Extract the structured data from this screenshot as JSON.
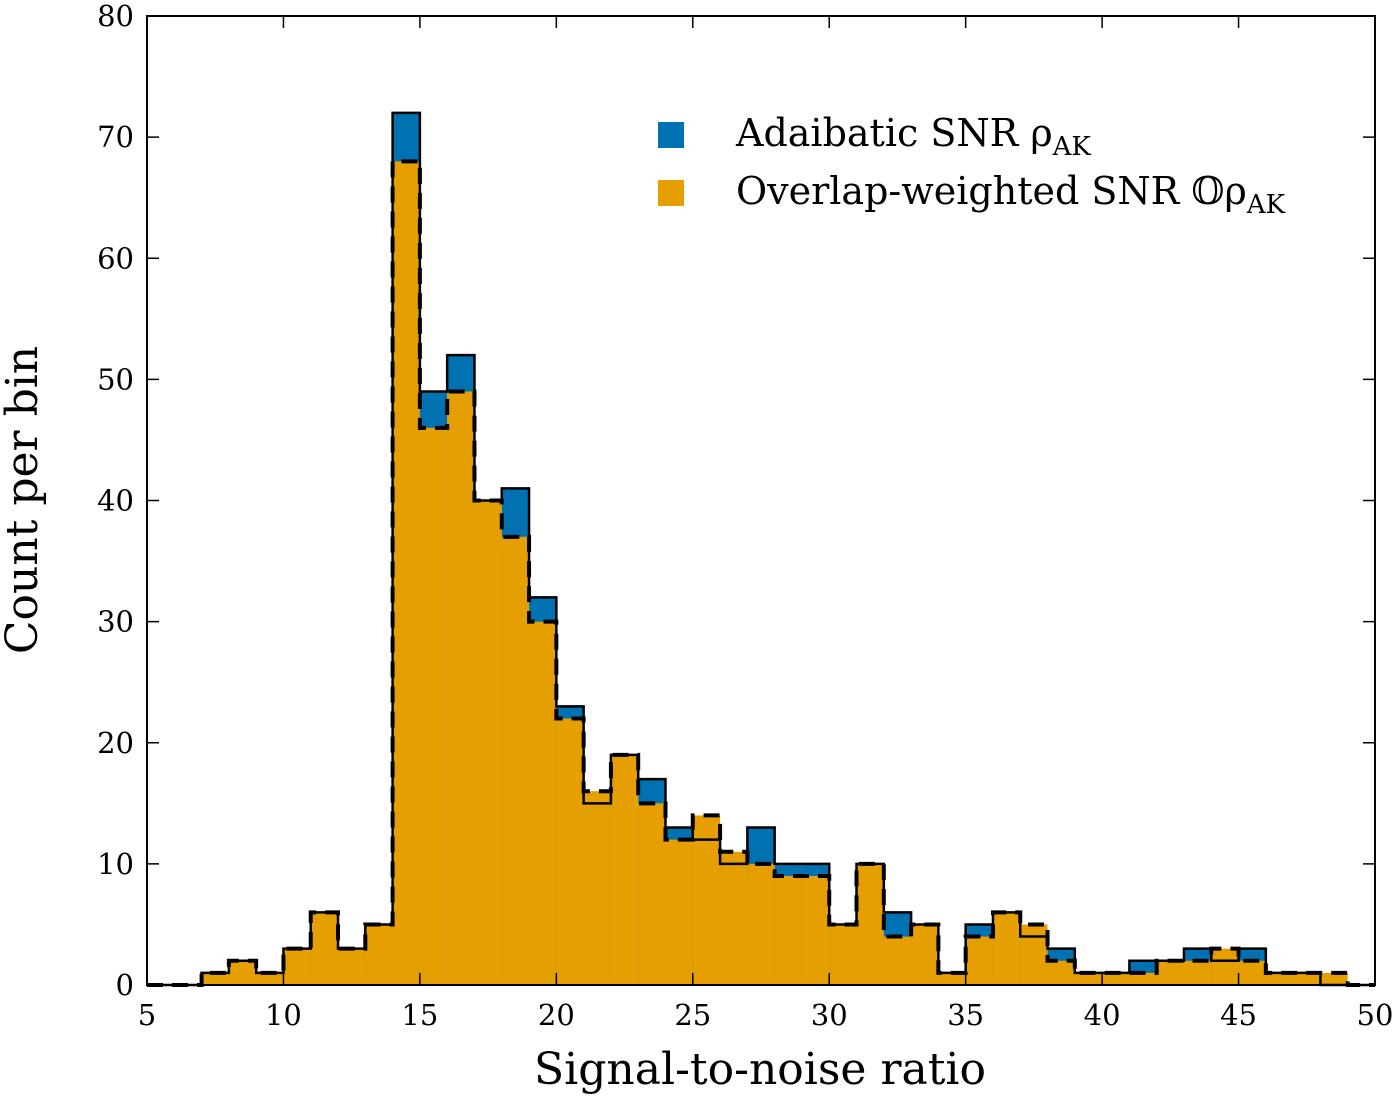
{
  "chart_data": {
    "type": "bar",
    "xlabel": "Signal-to-noise ratio",
    "ylabel": "Count per bin",
    "xlim": [
      5,
      50
    ],
    "ylim": [
      0,
      80
    ],
    "xticks": [
      5,
      10,
      15,
      20,
      25,
      30,
      35,
      40,
      45,
      50
    ],
    "yticks": [
      0,
      10,
      20,
      30,
      40,
      50,
      60,
      70,
      80
    ],
    "bin_edges": [
      5,
      6,
      7,
      8,
      9,
      10,
      11,
      12,
      13,
      14,
      15,
      16,
      17,
      18,
      19,
      20,
      21,
      22,
      23,
      24,
      25,
      26,
      27,
      28,
      29,
      30,
      31,
      32,
      33,
      34,
      35,
      36,
      37,
      38,
      39,
      40,
      41,
      42,
      43,
      44,
      45,
      46,
      47,
      48,
      49,
      50
    ],
    "legend_position": "upper right",
    "grid": false,
    "series": [
      {
        "name": "Adaibatic SNR ρ_AK",
        "legend_main": "Adaibatic SNR ρ",
        "legend_sub": "AK",
        "color": "#0072b2",
        "outline": "solid",
        "values": [
          0,
          0,
          1,
          2,
          1,
          3,
          6,
          3,
          5,
          72,
          49,
          52,
          40,
          41,
          32,
          23,
          15,
          19,
          17,
          13,
          12,
          10,
          13,
          10,
          10,
          5,
          10,
          6,
          5,
          1,
          5,
          6,
          4,
          3,
          1,
          1,
          2,
          2,
          3,
          2,
          3,
          1,
          1,
          0,
          0
        ]
      },
      {
        "name": "Overlap-weighted SNR 𝕆ρ_AK",
        "legend_main": "Overlap-weighted SNR 𝕆ρ",
        "legend_sub": "AK",
        "color": "#e69f00",
        "outline": "dashed",
        "values": [
          0,
          0,
          1,
          2,
          1,
          3,
          6,
          3,
          5,
          68,
          46,
          49,
          40,
          37,
          30,
          22,
          16,
          19,
          15,
          12,
          14,
          11,
          10,
          9,
          9,
          5,
          10,
          4,
          5,
          1,
          4,
          6,
          5,
          2,
          1,
          1,
          1,
          2,
          2,
          3,
          2,
          1,
          1,
          1,
          0
        ]
      }
    ]
  }
}
